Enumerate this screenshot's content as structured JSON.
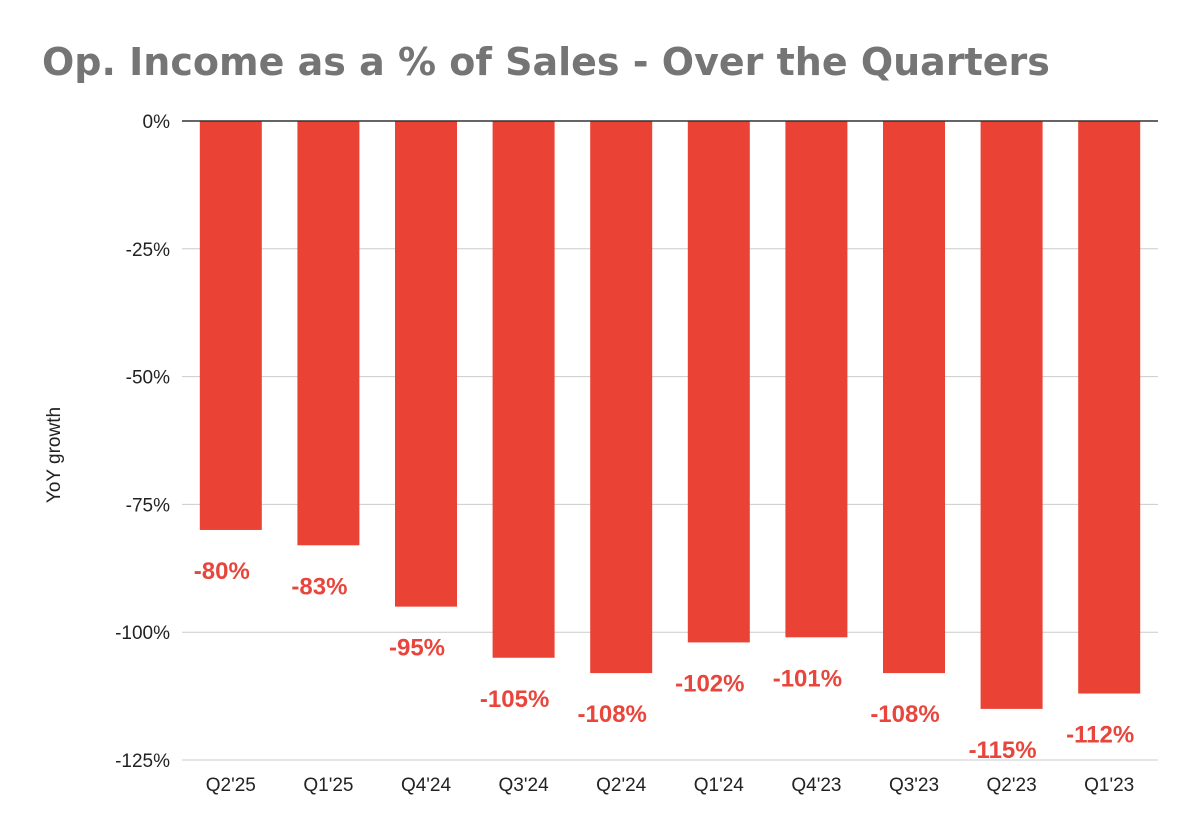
{
  "chart_data": {
    "type": "bar",
    "title": "Op. Income as a % of Sales - Over the Quarters",
    "xlabel": "",
    "ylabel": "YoY growth",
    "categories": [
      "Q2'25",
      "Q1'25",
      "Q4'24",
      "Q3'24",
      "Q2'24",
      "Q1'24",
      "Q4'23",
      "Q3'23",
      "Q2'23",
      "Q1'23"
    ],
    "values": [
      -80,
      -83,
      -95,
      -105,
      -108,
      -102,
      -101,
      -108,
      -115,
      -112
    ],
    "data_labels": [
      "-80%",
      "-83%",
      "-95%",
      "-105%",
      "-108%",
      "-102%",
      "-101%",
      "-108%",
      "-115%",
      "-112%"
    ],
    "ylim": [
      -125,
      0
    ],
    "yticks": [
      0,
      -25,
      -50,
      -75,
      -100,
      -125
    ],
    "ytick_labels": [
      "0%",
      "-25%",
      "-50%",
      "-75%",
      "-100%",
      "-125%"
    ],
    "grid": true,
    "legend": "none",
    "bar_color": "#ea4335",
    "label_color": "#e8453c",
    "title_color": "#757575"
  }
}
